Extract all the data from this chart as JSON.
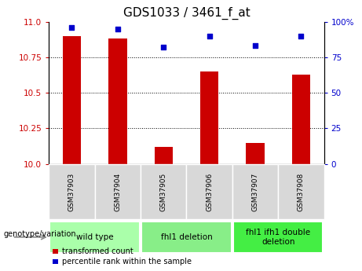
{
  "title": "GDS1033 / 3461_f_at",
  "samples": [
    "GSM37903",
    "GSM37904",
    "GSM37905",
    "GSM37906",
    "GSM37907",
    "GSM37908"
  ],
  "bar_values": [
    10.9,
    10.88,
    10.12,
    10.65,
    10.15,
    10.63
  ],
  "scatter_values": [
    96,
    95,
    82,
    90,
    83,
    90
  ],
  "bar_color": "#cc0000",
  "scatter_color": "#0000cc",
  "ylim_left": [
    10.0,
    11.0
  ],
  "ylim_right": [
    0,
    100
  ],
  "yticks_left": [
    10.0,
    10.25,
    10.5,
    10.75,
    11.0
  ],
  "yticks_right": [
    0,
    25,
    50,
    75,
    100
  ],
  "groups": [
    {
      "label": "wild type",
      "samples": [
        "GSM37903",
        "GSM37904"
      ],
      "color": "#aaffaa"
    },
    {
      "label": "fhl1 deletion",
      "samples": [
        "GSM37905",
        "GSM37906"
      ],
      "color": "#88ee88"
    },
    {
      "label": "fhl1 ifh1 double\ndeletion",
      "samples": [
        "GSM37907",
        "GSM37908"
      ],
      "color": "#44ee44"
    }
  ],
  "legend_labels": [
    "transformed count",
    "percentile rank within the sample"
  ],
  "genotype_label": "genotype/variation",
  "title_fontsize": 11,
  "tick_fontsize": 7.5,
  "sample_fontsize": 6.5,
  "group_fontsize": 7.5,
  "legend_fontsize": 7
}
